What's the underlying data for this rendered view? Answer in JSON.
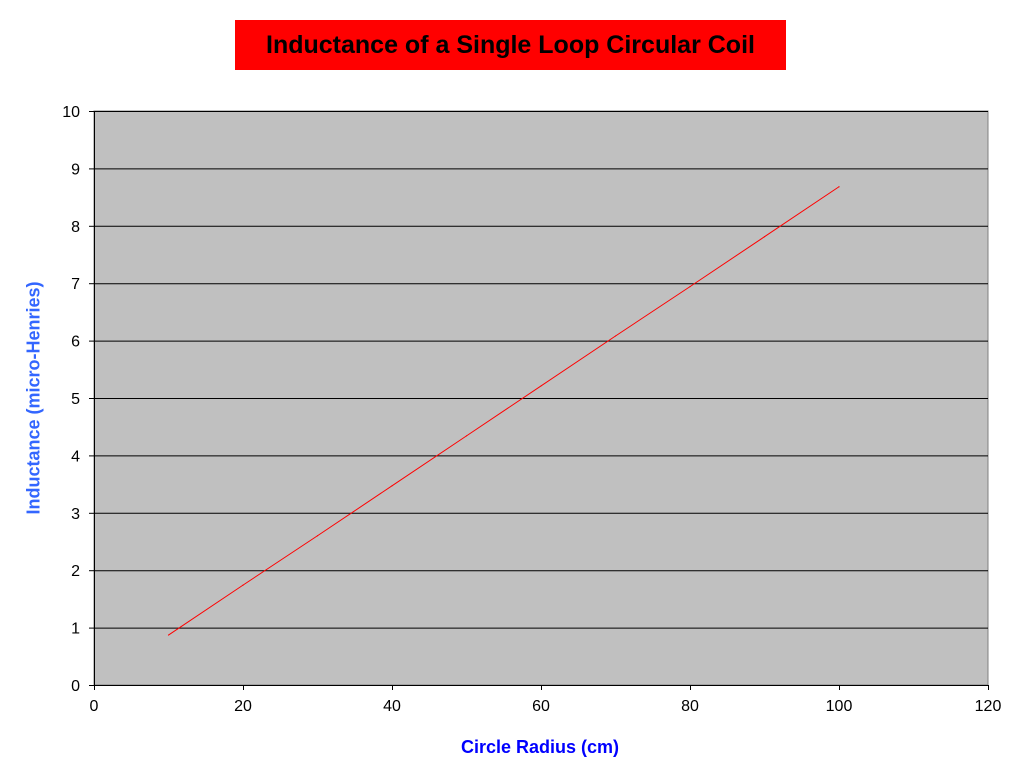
{
  "chart_data": {
    "type": "line",
    "title": "Inductance of a Single Loop Circular Coil",
    "xlabel": "Circle Radius (cm)",
    "ylabel": "Inductance (micro-Henries)",
    "xlim": [
      0,
      120
    ],
    "ylim": [
      0,
      10
    ],
    "xticks": [
      0,
      20,
      40,
      60,
      80,
      100,
      120
    ],
    "yticks": [
      0,
      1,
      2,
      3,
      4,
      5,
      6,
      7,
      8,
      9,
      10
    ],
    "grid": "horizontal",
    "legend": "none",
    "series": [
      {
        "name": "Inductance",
        "color": "#ff0000",
        "x": [
          10,
          20,
          30,
          40,
          50,
          60,
          70,
          80,
          90,
          100
        ],
        "y": [
          0.87,
          1.74,
          2.6,
          3.47,
          4.34,
          5.21,
          6.08,
          6.94,
          7.81,
          8.68
        ]
      }
    ],
    "colors": {
      "plot_bg": "#c0c0c0",
      "title_bg": "#ff0000",
      "xlabel": "#0000ff",
      "ylabel": "#3366ff"
    }
  }
}
